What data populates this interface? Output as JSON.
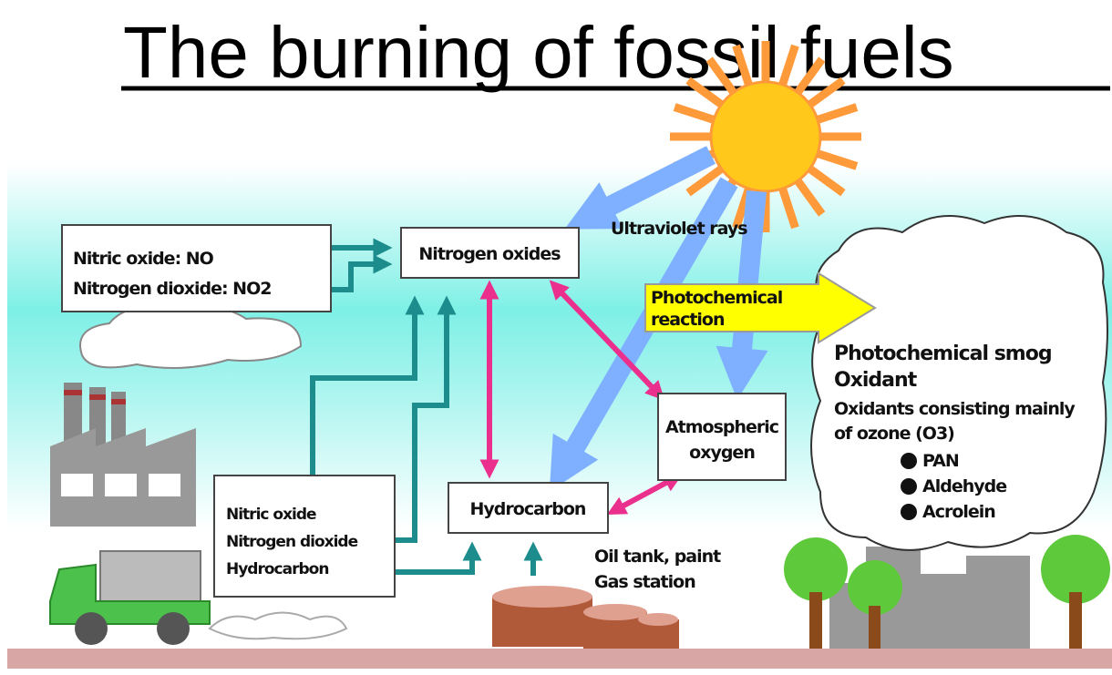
{
  "title": "The burning of fossil fuels",
  "nodes": [
    {
      "lines": [
        "Nitric oxide: NO",
        "Nitrogen dioxide: NO2"
      ]
    },
    {
      "lines": [
        "Nitrogen oxides"
      ]
    },
    {
      "lines": [
        "Ultraviolet rays"
      ]
    },
    {
      "lines": [
        "Photochemical",
        "reaction"
      ]
    },
    {
      "lines": [
        "Photochemical smog",
        "Oxidant",
        "Oxidants consisting mainly",
        "of ozone (O3)"
      ],
      "items": [
        "PAN",
        "Aldehyde",
        "Acrolein"
      ]
    },
    {
      "lines": [
        "Atmospheric",
        "oxygen"
      ]
    },
    {
      "lines": [
        "Hydrocarbon"
      ]
    },
    {
      "lines": [
        "Nitric oxide",
        "Nitrogen dioxide",
        "Hydrocarbon"
      ]
    },
    {
      "lines": [
        "Oil tank, paint",
        "Gas station"
      ]
    }
  ]
}
